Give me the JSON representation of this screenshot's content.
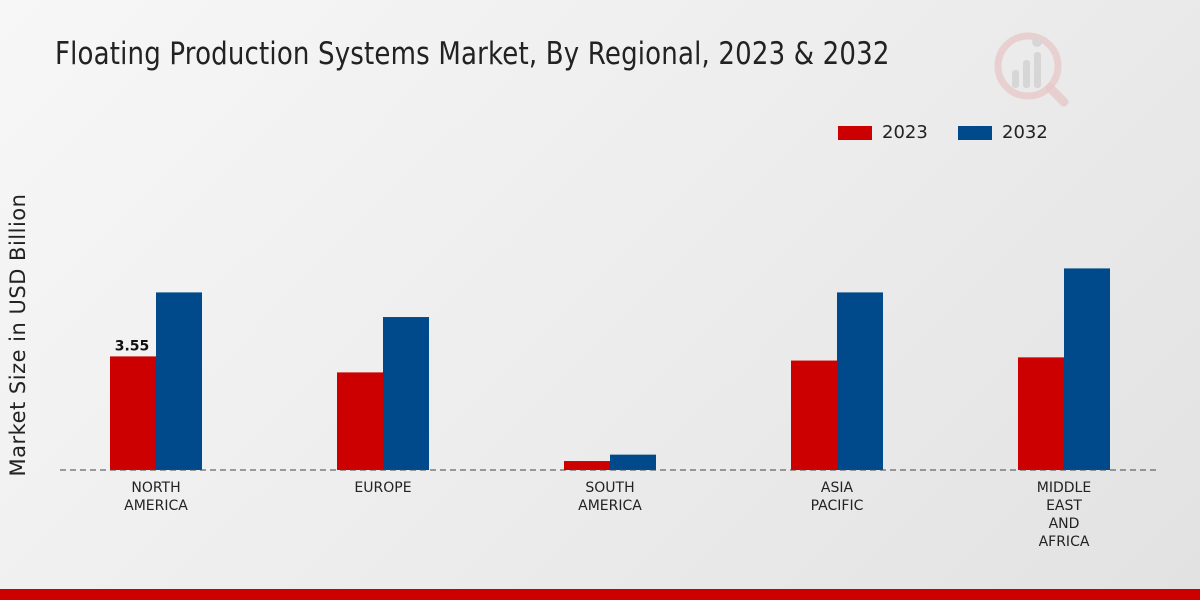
{
  "page": {
    "title": "Floating Production Systems Market, By Regional, 2023 & 2032"
  },
  "colors": {
    "series_2023": "#cc0000",
    "series_2032": "#004a8c",
    "footer": "#cc0000"
  },
  "chart_data": {
    "type": "bar",
    "title": "Floating Production Systems Market, By Regional, 2023 & 2032",
    "xlabel": "",
    "ylabel": "Market Size in USD Billion",
    "ylim": [
      0,
      10
    ],
    "grid": false,
    "legend_position": "top-right",
    "categories": [
      [
        "NORTH",
        "AMERICA"
      ],
      [
        "EUROPE"
      ],
      [
        "SOUTH",
        "AMERICA"
      ],
      [
        "ASIA",
        "PACIFIC"
      ],
      [
        "MIDDLE",
        "EAST",
        "AND",
        "AFRICA"
      ]
    ],
    "series": [
      {
        "name": "2023",
        "values": [
          3.55,
          3.05,
          0.28,
          3.42,
          3.52
        ]
      },
      {
        "name": "2032",
        "values": [
          5.55,
          4.78,
          0.48,
          5.55,
          6.3
        ]
      }
    ],
    "data_labels": [
      {
        "series": 0,
        "category": 0,
        "text": "3.55"
      }
    ]
  }
}
